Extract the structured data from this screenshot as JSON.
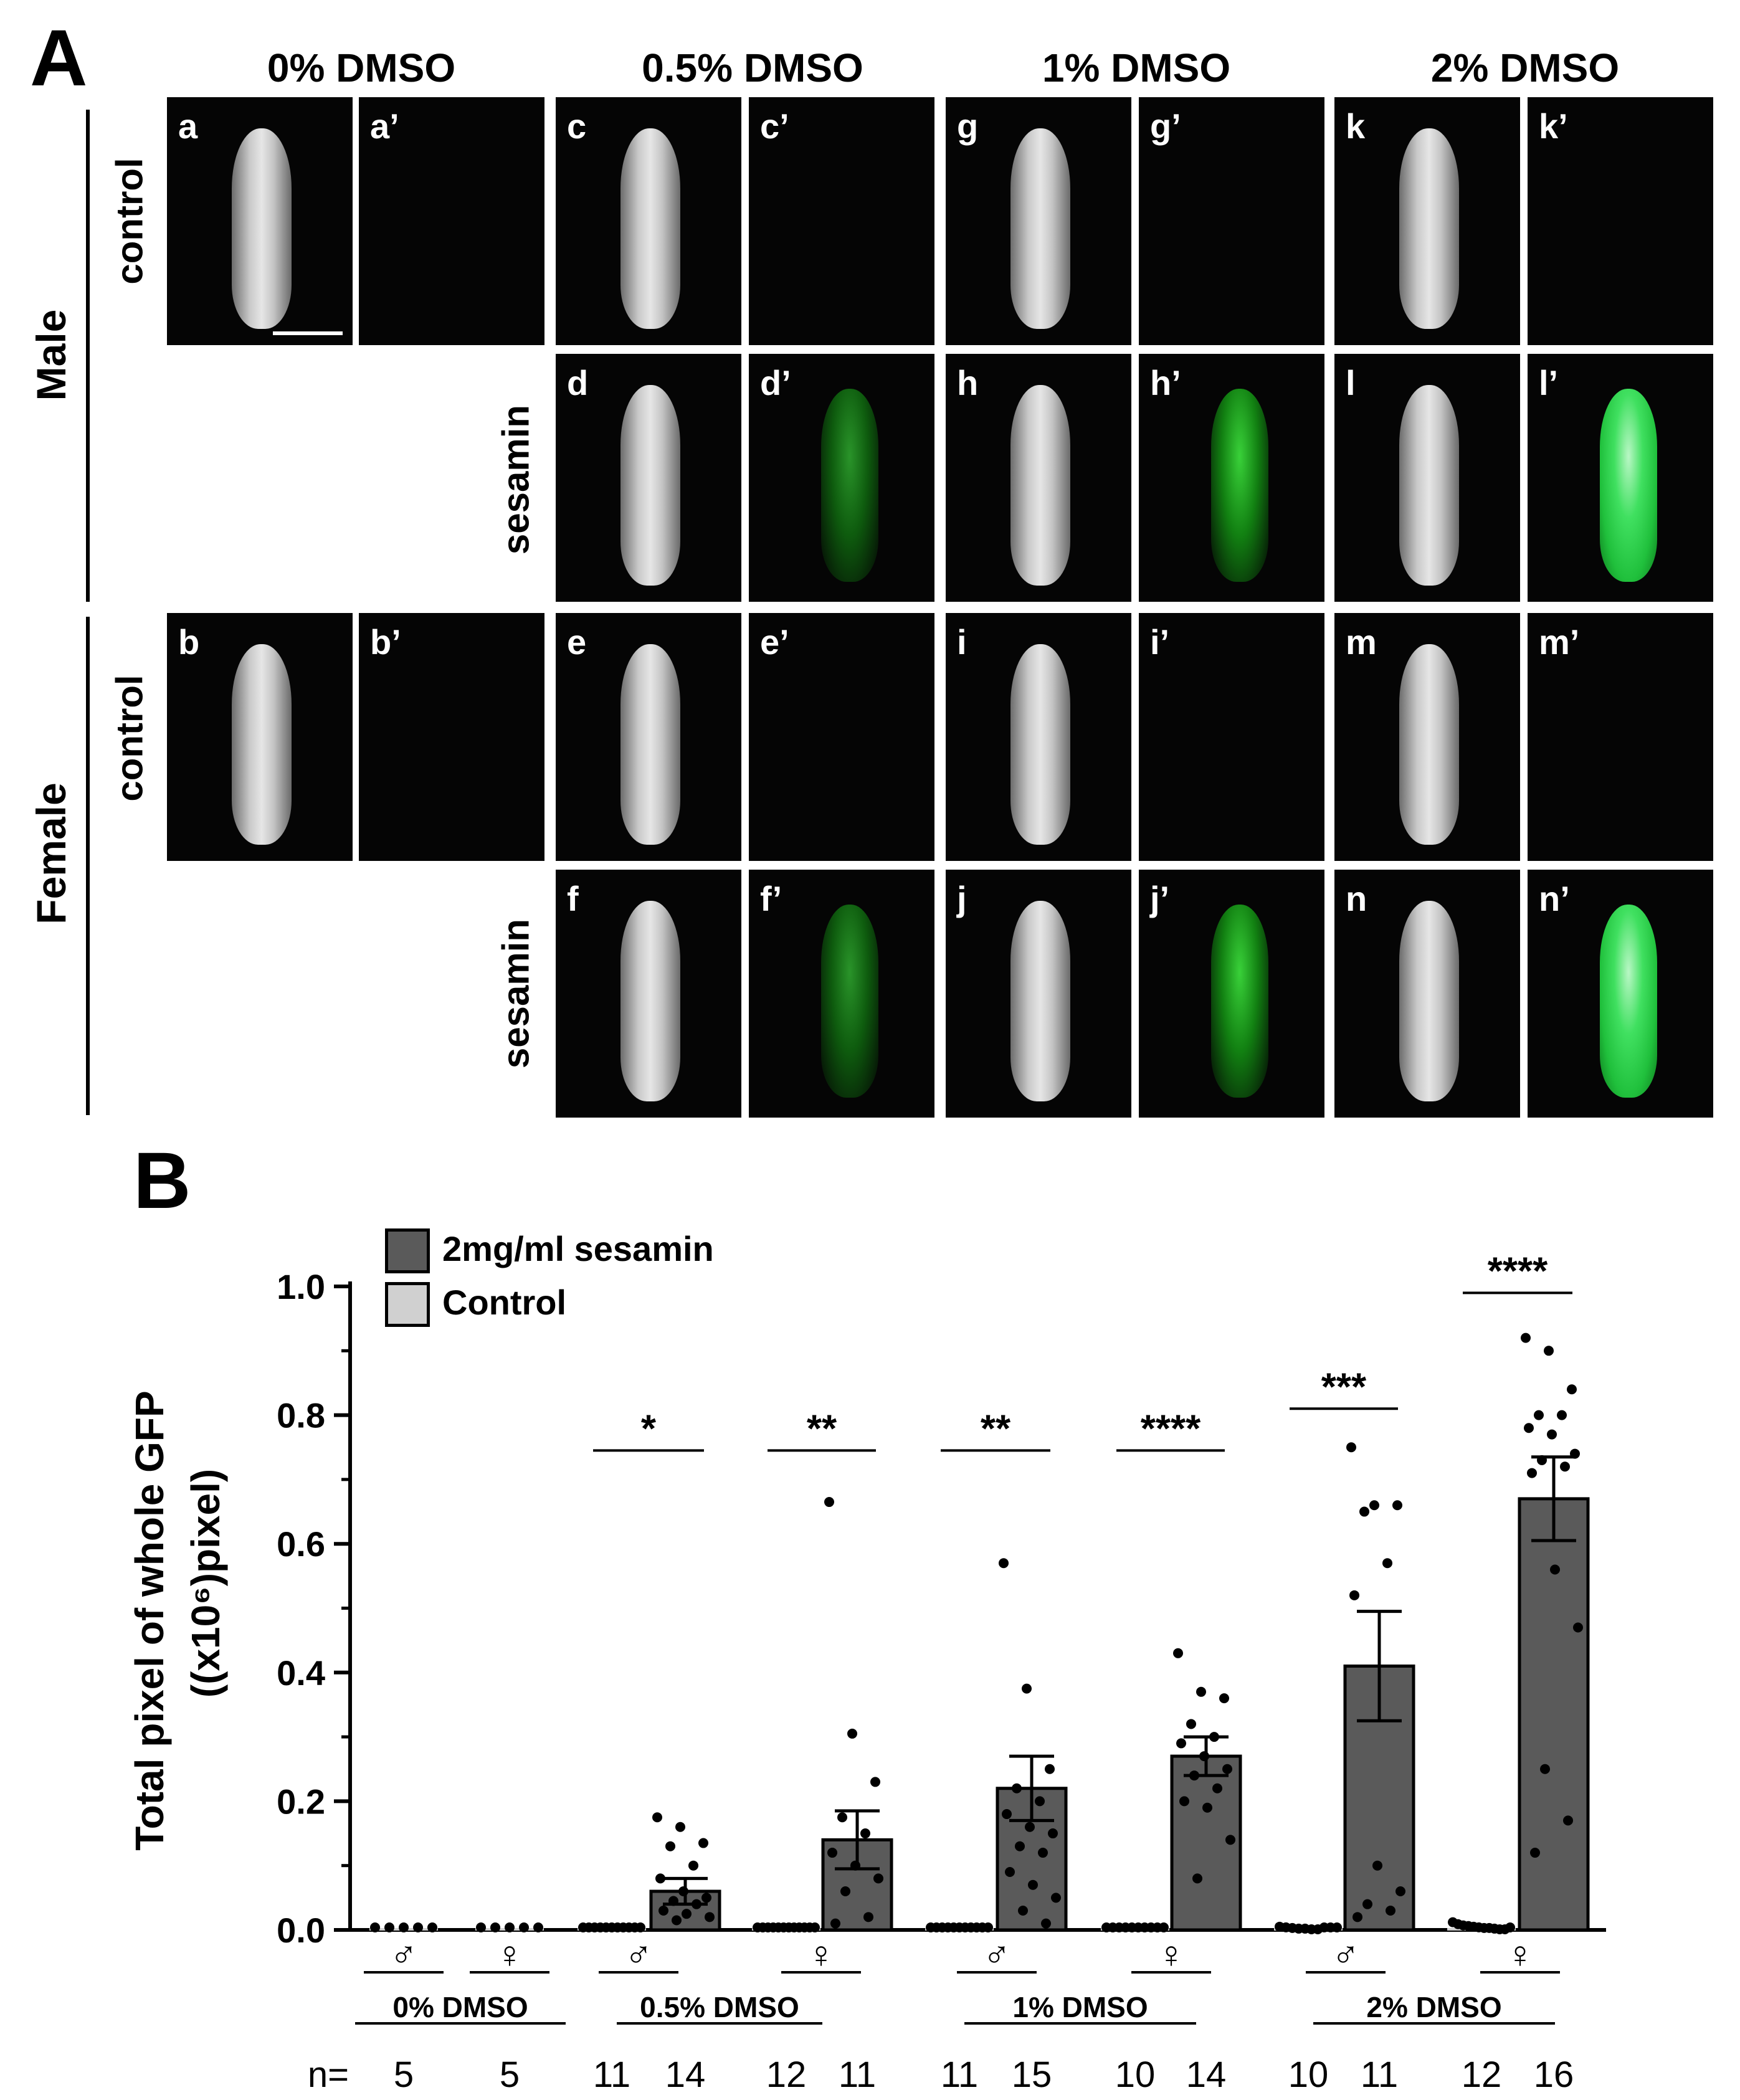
{
  "panel_a": {
    "letter": "A",
    "columns": [
      "0% DMSO",
      "0.5% DMSO",
      "1% DMSO",
      "2% DMSO"
    ],
    "sexes": [
      "Male",
      "Female"
    ],
    "conditions": [
      "control",
      "sesamin"
    ],
    "tiles": [
      {
        "label": "a",
        "kind": "bright"
      },
      {
        "label": "a’",
        "kind": "gfp-none"
      },
      {
        "label": "c",
        "kind": "bright"
      },
      {
        "label": "c’",
        "kind": "gfp-none"
      },
      {
        "label": "g",
        "kind": "bright"
      },
      {
        "label": "g’",
        "kind": "gfp-none"
      },
      {
        "label": "k",
        "kind": "bright"
      },
      {
        "label": "k’",
        "kind": "gfp-none"
      },
      {
        "label": "d",
        "kind": "bright"
      },
      {
        "label": "d’",
        "kind": "gfp-low"
      },
      {
        "label": "h",
        "kind": "bright"
      },
      {
        "label": "h’",
        "kind": "gfp-mid"
      },
      {
        "label": "l",
        "kind": "bright"
      },
      {
        "label": "l’",
        "kind": "gfp-high"
      },
      {
        "label": "b",
        "kind": "bright"
      },
      {
        "label": "b’",
        "kind": "gfp-none"
      },
      {
        "label": "e",
        "kind": "bright"
      },
      {
        "label": "e’",
        "kind": "gfp-none"
      },
      {
        "label": "i",
        "kind": "bright"
      },
      {
        "label": "i’",
        "kind": "gfp-none"
      },
      {
        "label": "m",
        "kind": "bright"
      },
      {
        "label": "m’",
        "kind": "gfp-none"
      },
      {
        "label": "f",
        "kind": "bright"
      },
      {
        "label": "f’",
        "kind": "gfp-low"
      },
      {
        "label": "j",
        "kind": "bright"
      },
      {
        "label": "j’",
        "kind": "gfp-mid"
      },
      {
        "label": "n",
        "kind": "bright"
      },
      {
        "label": "n’",
        "kind": "gfp-high"
      }
    ]
  },
  "panel_b": {
    "letter": "B",
    "legend": [
      {
        "name": "2mg/ml sesamin",
        "color": "#5a5a5a"
      },
      {
        "name": "Control",
        "color": "#d0d0d0"
      }
    ]
  },
  "chart_data": {
    "type": "bar",
    "ylabel": "Total pixel of whole GFP",
    "ylabel2": "((x10⁶)pixel)",
    "ylim": [
      0,
      1.0
    ],
    "yticks": [
      "0.0",
      "0.2",
      "0.4",
      "0.6",
      "0.8",
      "1.0"
    ],
    "groups": [
      {
        "dmso": "0% DMSO",
        "bars": [
          {
            "sex": "♂",
            "condition": "Control",
            "value": 0.0,
            "sem": 0.0,
            "n": "5",
            "points": [
              0,
              0,
              0,
              0,
              0
            ]
          },
          {
            "sex": "♀",
            "condition": "Control",
            "value": 0.0,
            "sem": 0.0,
            "n": "5",
            "points": [
              0,
              0,
              0,
              0,
              0
            ]
          }
        ]
      },
      {
        "dmso": "0.5% DMSO",
        "bars": [
          {
            "sex": "♂",
            "condition": "Control",
            "value": 0.0,
            "sem": 0.0,
            "n": "11",
            "points": [
              0,
              0,
              0,
              0,
              0,
              0,
              0,
              0,
              0,
              0,
              0
            ]
          },
          {
            "sex": "♂",
            "condition": "2mg/ml sesamin",
            "value": 0.06,
            "sem": 0.02,
            "n": "14",
            "points": [
              0.175,
              0.16,
              0.135,
              0.13,
              0.1,
              0.08,
              0.06,
              0.05,
              0.045,
              0.04,
              0.03,
              0.025,
              0.02,
              0.015
            ],
            "sig": "*"
          },
          {
            "sex": "♀",
            "condition": "Control",
            "value": 0.0,
            "sem": 0.0,
            "n": "12",
            "points": [
              0,
              0,
              0,
              0,
              0,
              0,
              0,
              0,
              0,
              0,
              0,
              0
            ]
          },
          {
            "sex": "♀",
            "condition": "2mg/ml sesamin",
            "value": 0.14,
            "sem": 0.045,
            "n": "11",
            "points": [
              0.665,
              0.305,
              0.23,
              0.175,
              0.15,
              0.12,
              0.1,
              0.08,
              0.06,
              0.02,
              0.01
            ],
            "sig": "**"
          }
        ]
      },
      {
        "dmso": "1% DMSO",
        "bars": [
          {
            "sex": "♂",
            "condition": "Control",
            "value": 0.0,
            "sem": 0.0,
            "n": "11",
            "points": [
              0,
              0,
              0,
              0,
              0,
              0,
              0,
              0,
              0,
              0,
              0
            ]
          },
          {
            "sex": "♂",
            "condition": "2mg/ml sesamin",
            "value": 0.22,
            "sem": 0.05,
            "n": "15",
            "points": [
              0.57,
              0.375,
              0.25,
              0.22,
              0.2,
              0.18,
              0.16,
              0.15,
              0.13,
              0.12,
              0.09,
              0.07,
              0.05,
              0.03,
              0.01
            ],
            "sig": "**"
          },
          {
            "sex": "♀",
            "condition": "Control",
            "value": 0.0,
            "sem": 0.0,
            "n": "10",
            "points": [
              0,
              0,
              0,
              0,
              0,
              0,
              0,
              0,
              0,
              0
            ]
          },
          {
            "sex": "♀",
            "condition": "2mg/ml sesamin",
            "value": 0.27,
            "sem": 0.03,
            "n": "14",
            "points": [
              0.43,
              0.37,
              0.36,
              0.32,
              0.3,
              0.29,
              0.27,
              0.25,
              0.24,
              0.22,
              0.2,
              0.19,
              0.14,
              0.08
            ],
            "sig": "****"
          }
        ]
      },
      {
        "dmso": "2% DMSO",
        "bars": [
          {
            "sex": "♂",
            "condition": "Control",
            "value": 0.002,
            "sem": 0.001,
            "n": "10",
            "points": [
              0.005,
              0.004,
              0.003,
              0.002,
              0.002,
              0.001,
              0.001,
              0.0,
              0.0,
              0.0
            ]
          },
          {
            "sex": "♂",
            "condition": "2mg/ml sesamin",
            "value": 0.41,
            "sem": 0.085,
            "n": "11",
            "points": [
              0.75,
              0.66,
              0.66,
              0.65,
              0.57,
              0.52,
              0.1,
              0.06,
              0.04,
              0.03,
              0.02
            ],
            "sig": "***"
          },
          {
            "sex": "♀",
            "condition": "Control",
            "value": 0.004,
            "sem": 0.002,
            "n": "12",
            "points": [
              0.012,
              0.009,
              0.007,
              0.006,
              0.005,
              0.004,
              0.003,
              0.003,
              0.002,
              0.001,
              0.001,
              0.0
            ]
          },
          {
            "sex": "♀",
            "condition": "2mg/ml sesamin",
            "value": 0.67,
            "sem": 0.065,
            "n": "16",
            "points": [
              0.92,
              0.9,
              0.84,
              0.8,
              0.8,
              0.78,
              0.77,
              0.74,
              0.73,
              0.72,
              0.71,
              0.56,
              0.47,
              0.25,
              0.17,
              0.12
            ],
            "sig": "****"
          }
        ]
      }
    ],
    "n_prefix": "n="
  }
}
